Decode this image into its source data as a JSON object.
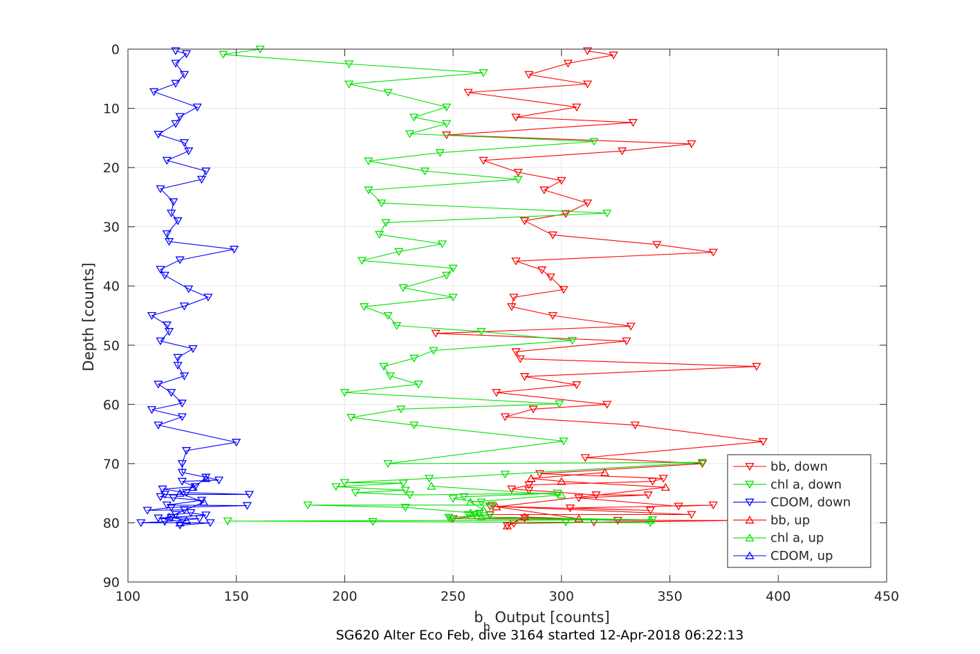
{
  "chart_data": {
    "type": "line",
    "xlabel_main": "b",
    "xlabel_sub": "b",
    "xlabel_rest": " Output [counts]",
    "ylabel": "Depth [counts]",
    "caption": "SG620 Alter Eco Feb, dive 3164 started 12-Apr-2018 06:22:13",
    "xlim": [
      100,
      450
    ],
    "ylim": [
      0,
      90
    ],
    "y_reversed": true,
    "grid": true,
    "legend_position": "bottom-right",
    "xticks": [
      100,
      150,
      200,
      250,
      300,
      350,
      400,
      450
    ],
    "yticks": [
      0,
      10,
      20,
      30,
      40,
      50,
      60,
      70,
      80,
      90
    ],
    "series": [
      {
        "name": "bb, down",
        "color": "#ff0000",
        "marker": "triangle-down",
        "points": [
          [
            312,
            0.3
          ],
          [
            324,
            1
          ],
          [
            303,
            2.4
          ],
          [
            285,
            4.3
          ],
          [
            312,
            5.9
          ],
          [
            257,
            7.3
          ],
          [
            307,
            9.8
          ],
          [
            279,
            11.5
          ],
          [
            333,
            12.4
          ],
          [
            247,
            14.5
          ],
          [
            360,
            16
          ],
          [
            328,
            17.2
          ],
          [
            264,
            18.8
          ],
          [
            280,
            20.8
          ],
          [
            300,
            22.2
          ],
          [
            292,
            23.8
          ],
          [
            312,
            26
          ],
          [
            302,
            27.8
          ],
          [
            283,
            29
          ],
          [
            296,
            31.4
          ],
          [
            344,
            33
          ],
          [
            370,
            34.3
          ],
          [
            279,
            35.8
          ],
          [
            291,
            37.3
          ],
          [
            295,
            38.5
          ],
          [
            301,
            40.6
          ],
          [
            278,
            41.9
          ],
          [
            277,
            43.5
          ],
          [
            296,
            45
          ],
          [
            332,
            46.8
          ],
          [
            242,
            48
          ],
          [
            330,
            49.3
          ],
          [
            279,
            51.1
          ],
          [
            281,
            52.3
          ],
          [
            390,
            53.6
          ],
          [
            283,
            55.3
          ],
          [
            307,
            56.7
          ],
          [
            270,
            58
          ],
          [
            321,
            60
          ],
          [
            287,
            60.8
          ],
          [
            274,
            62.1
          ],
          [
            334,
            63.5
          ],
          [
            393,
            66.3
          ],
          [
            311,
            69
          ],
          [
            365,
            70
          ],
          [
            290,
            71.7
          ],
          [
            347,
            72.5
          ],
          [
            342,
            73
          ],
          [
            285,
            73.6
          ],
          [
            277,
            74.3
          ],
          [
            285,
            74.5
          ],
          [
            316,
            75.3
          ],
          [
            340,
            75.3
          ],
          [
            308,
            75.8
          ],
          [
            354,
            77.2
          ],
          [
            370,
            77
          ],
          [
            304,
            77.5
          ],
          [
            341,
            77.9
          ],
          [
            267,
            77.2
          ],
          [
            360,
            78.6
          ],
          [
            267,
            78.6
          ],
          [
            250,
            79.3
          ],
          [
            283,
            79.2
          ],
          [
            326,
            79.6
          ],
          [
            383,
            79.6
          ],
          [
            315,
            79.9
          ],
          [
            278,
            80.1
          ],
          [
            275,
            80.5
          ]
        ]
      },
      {
        "name": "chl a, down",
        "color": "#00e100",
        "marker": "triangle-down",
        "points": [
          [
            161,
            0
          ],
          [
            144,
            0.9
          ],
          [
            202,
            2.5
          ],
          [
            264,
            4
          ],
          [
            202,
            5.9
          ],
          [
            220,
            7.3
          ],
          [
            247,
            9.8
          ],
          [
            232,
            11.5
          ],
          [
            247,
            12.6
          ],
          [
            230,
            14.3
          ],
          [
            315,
            15.6
          ],
          [
            244,
            17.5
          ],
          [
            211,
            18.9
          ],
          [
            237,
            20.6
          ],
          [
            280,
            22
          ],
          [
            211,
            23.8
          ],
          [
            217,
            26
          ],
          [
            321,
            27.7
          ],
          [
            219,
            29.3
          ],
          [
            216,
            31.3
          ],
          [
            245,
            32.9
          ],
          [
            225,
            34.2
          ],
          [
            208,
            35.7
          ],
          [
            250,
            37
          ],
          [
            247,
            38.2
          ],
          [
            227,
            40.3
          ],
          [
            250,
            41.9
          ],
          [
            209,
            43.5
          ],
          [
            220,
            45
          ],
          [
            224,
            46.7
          ],
          [
            263,
            47.7
          ],
          [
            305,
            49.2
          ],
          [
            241,
            50.9
          ],
          [
            232,
            52.2
          ],
          [
            218,
            53.6
          ],
          [
            221,
            55.2
          ],
          [
            234,
            56.6
          ],
          [
            200,
            58
          ],
          [
            299,
            59.9
          ],
          [
            226,
            60.8
          ],
          [
            203,
            62.2
          ],
          [
            232,
            63.5
          ],
          [
            301,
            66.2
          ],
          [
            220,
            70
          ],
          [
            365,
            69.8
          ],
          [
            274,
            71.8
          ],
          [
            239,
            72.5
          ],
          [
            200,
            73.2
          ],
          [
            227,
            73.3
          ],
          [
            196,
            73.9
          ],
          [
            228,
            74.5
          ],
          [
            205,
            74.9
          ],
          [
            230,
            75.3
          ],
          [
            298,
            75
          ],
          [
            255,
            75.6
          ],
          [
            250,
            75.9
          ],
          [
            263,
            76.5
          ],
          [
            268,
            77
          ],
          [
            183,
            77
          ],
          [
            228,
            77.4
          ],
          [
            262,
            78.4
          ],
          [
            260,
            78.6
          ],
          [
            257,
            78.6
          ],
          [
            267,
            78.7
          ],
          [
            248,
            79.1
          ],
          [
            249,
            79.3
          ],
          [
            342,
            79.5
          ],
          [
            146,
            79.7
          ],
          [
            213,
            79.8
          ],
          [
            302,
            79.9
          ],
          [
            341,
            80
          ]
        ]
      },
      {
        "name": "CDOM, down",
        "color": "#0000ff",
        "marker": "triangle-down",
        "points": [
          [
            122,
            0.3
          ],
          [
            127,
            0.8
          ],
          [
            122,
            2.4
          ],
          [
            126,
            4.3
          ],
          [
            122,
            5.8
          ],
          [
            112,
            7.2
          ],
          [
            132,
            9.8
          ],
          [
            124,
            11.4
          ],
          [
            122,
            12.6
          ],
          [
            114,
            14.4
          ],
          [
            126,
            15.8
          ],
          [
            128,
            17.2
          ],
          [
            118,
            18.8
          ],
          [
            136,
            20.6
          ],
          [
            134,
            22
          ],
          [
            115,
            23.6
          ],
          [
            121,
            25.8
          ],
          [
            120,
            27.7
          ],
          [
            123,
            29
          ],
          [
            118,
            31.2
          ],
          [
            119,
            32.5
          ],
          [
            149,
            33.8
          ],
          [
            124,
            35.6
          ],
          [
            115,
            37.2
          ],
          [
            117,
            38.2
          ],
          [
            128,
            40.5
          ],
          [
            137,
            41.9
          ],
          [
            126,
            43.4
          ],
          [
            111,
            45
          ],
          [
            118,
            46.6
          ],
          [
            119,
            47.7
          ],
          [
            115,
            49.3
          ],
          [
            130,
            50.6
          ],
          [
            123,
            52.1
          ],
          [
            123,
            53.4
          ],
          [
            126,
            55.2
          ],
          [
            114,
            56.6
          ],
          [
            120,
            58
          ],
          [
            125,
            59.8
          ],
          [
            111,
            60.9
          ],
          [
            125,
            62.1
          ],
          [
            114,
            63.5
          ],
          [
            150,
            66.4
          ],
          [
            127,
            67.8
          ],
          [
            125,
            70
          ],
          [
            125,
            71.5
          ],
          [
            136,
            72.3
          ],
          [
            142,
            72.8
          ],
          [
            125,
            73
          ],
          [
            131,
            73.9
          ],
          [
            116,
            74.3
          ],
          [
            127,
            74.9
          ],
          [
            156,
            75.2
          ],
          [
            117,
            75.2
          ],
          [
            115,
            75.6
          ],
          [
            121,
            75.8
          ],
          [
            134,
            76.2
          ],
          [
            118,
            77
          ],
          [
            155,
            77.1
          ],
          [
            120,
            77.4
          ],
          [
            109,
            77.9
          ],
          [
            126,
            77.8
          ],
          [
            122,
            78.6
          ],
          [
            129,
            78.3
          ],
          [
            136,
            78.7
          ],
          [
            114,
            79.2
          ],
          [
            120,
            79.1
          ],
          [
            133,
            79.3
          ],
          [
            117,
            79.8
          ],
          [
            106,
            80
          ],
          [
            138,
            80
          ],
          [
            124,
            80.4
          ]
        ]
      },
      {
        "name": "bb, up",
        "color": "#ff0000",
        "marker": "triangle-up",
        "points": [
          [
            275,
            80.5
          ],
          [
            283,
            79
          ],
          [
            308,
            79.3
          ],
          [
            270,
            77.3
          ],
          [
            348,
            74
          ],
          [
            300,
            73
          ],
          [
            286,
            72.5
          ],
          [
            320,
            71.5
          ]
        ]
      },
      {
        "name": "chl a, up",
        "color": "#00e100",
        "marker": "triangle-up",
        "points": [
          [
            341,
            79.5
          ],
          [
            263,
            79
          ],
          [
            258,
            78.3
          ],
          [
            264,
            77.8
          ],
          [
            258,
            76.5
          ],
          [
            300,
            75.3
          ],
          [
            240,
            73.8
          ]
        ]
      },
      {
        "name": "CDOM, up",
        "color": "#0000ff",
        "marker": "triangle-up",
        "points": [
          [
            124,
            80
          ],
          [
            127,
            79.6
          ],
          [
            119,
            79
          ],
          [
            135,
            76.5
          ],
          [
            124,
            75
          ],
          [
            130,
            74
          ],
          [
            136,
            72.5
          ]
        ]
      }
    ]
  }
}
